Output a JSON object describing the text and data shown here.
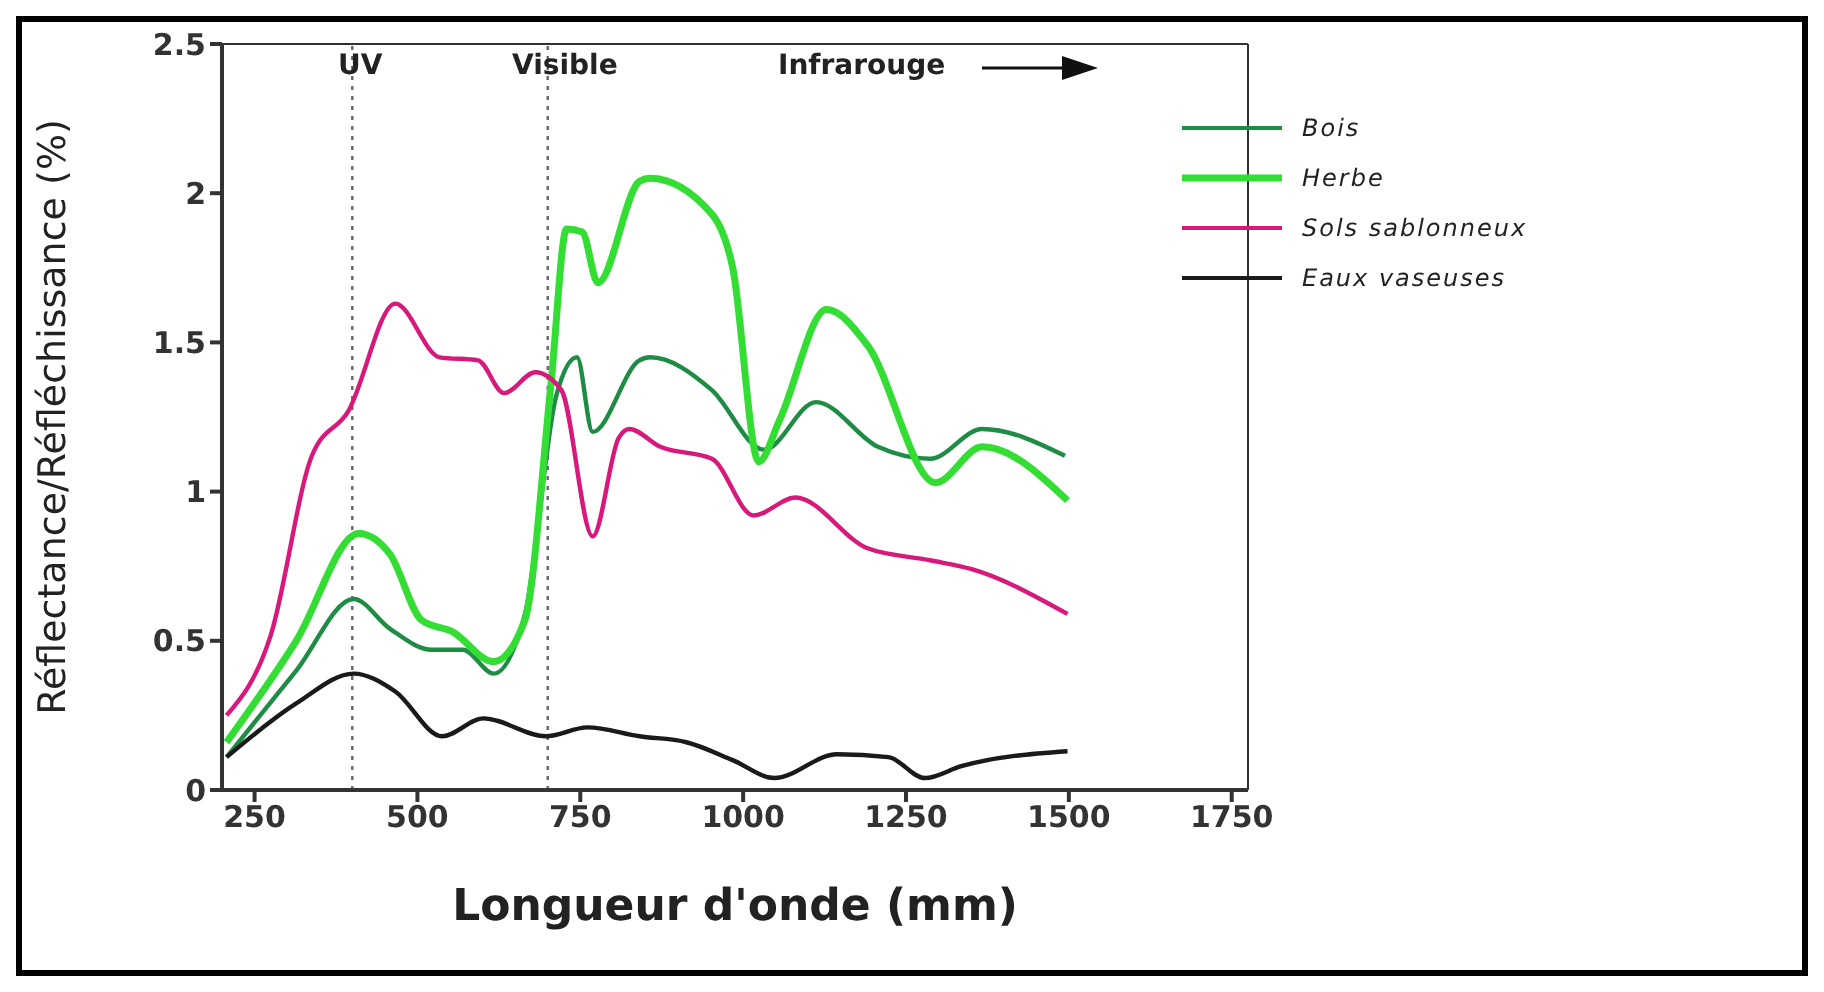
{
  "chart_data": {
    "type": "line",
    "xlabel": "Longueur d'onde (mm)",
    "ylabel": "Réflectance/Réfléchissance (%)",
    "xlim": [
      200,
      1775
    ],
    "xticks": [
      250,
      500,
      750,
      1000,
      1250,
      1500,
      1750
    ],
    "ylim": [
      0,
      2.5
    ],
    "yticks": [
      0,
      0.5,
      1,
      1.5,
      2,
      2.5
    ],
    "grid": false,
    "legend": "top right",
    "marker": "none",
    "line_style": "solid",
    "ref_lines": [
      {
        "axis": "x",
        "value": 400,
        "color": "#666666",
        "line_style": "dotted"
      },
      {
        "axis": "x",
        "value": 700,
        "color": "#666666",
        "line_style": "dotted"
      }
    ],
    "annotations": [
      "UV",
      "Visible",
      "Infrarouge"
    ],
    "series": [
      {
        "name": "Bois",
        "color": "#1e8c44",
        "x": [
          207,
          314,
          402,
          458,
          522,
          570,
          617,
          665,
          713,
          745,
          769,
          841,
          857,
          952,
          1032,
          1112,
          1207,
          1287,
          1367,
          1494
        ],
        "values": [
          0.11,
          0.4,
          0.64,
          0.54,
          0.47,
          0.47,
          0.39,
          0.59,
          1.32,
          1.45,
          1.2,
          1.44,
          1.45,
          1.34,
          1.14,
          1.3,
          1.15,
          1.11,
          1.21,
          1.12
        ]
      },
      {
        "name": "Herbe",
        "color": "#33dd33",
        "x": [
          207,
          314,
          410,
          458,
          506,
          554,
          617,
          665,
          705,
          729,
          753,
          777,
          841,
          857,
          952,
          984,
          1024,
          1056,
          1128,
          1191,
          1295,
          1367,
          1498
        ],
        "values": [
          0.16,
          0.5,
          0.86,
          0.79,
          0.57,
          0.53,
          0.43,
          0.57,
          1.36,
          1.88,
          1.87,
          1.7,
          2.04,
          2.05,
          1.93,
          1.75,
          1.1,
          1.24,
          1.61,
          1.49,
          1.03,
          1.15,
          0.97
        ]
      },
      {
        "name": "Sols sablonneux",
        "color": "#d6197a",
        "x": [
          207,
          275,
          338,
          394,
          466,
          534,
          593,
          633,
          681,
          721,
          769,
          809,
          825,
          873,
          952,
          1016,
          1080,
          1191,
          1287,
          1351,
          1498
        ],
        "values": [
          0.25,
          0.52,
          1.12,
          1.27,
          1.63,
          1.45,
          1.44,
          1.33,
          1.4,
          1.34,
          0.85,
          1.18,
          1.21,
          1.15,
          1.11,
          0.92,
          0.98,
          0.81,
          0.77,
          0.74,
          0.59
        ]
      },
      {
        "name": "Eaux vaseuses",
        "color": "#1a1a1a",
        "x": [
          207,
          314,
          402,
          466,
          538,
          601,
          697,
          761,
          841,
          913,
          984,
          1048,
          1144,
          1223,
          1279,
          1335,
          1498
        ],
        "values": [
          0.11,
          0.29,
          0.39,
          0.33,
          0.18,
          0.24,
          0.18,
          0.21,
          0.18,
          0.16,
          0.1,
          0.04,
          0.12,
          0.11,
          0.04,
          0.08,
          0.13
        ]
      }
    ]
  }
}
